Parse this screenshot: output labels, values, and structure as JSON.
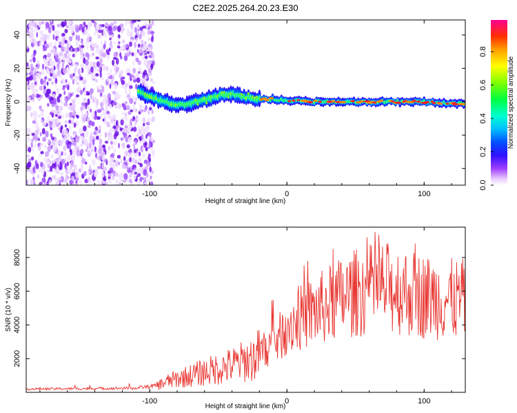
{
  "title": "C2E2.2025.264.20.23.E30",
  "colors": {
    "snr_line": "#e8342f",
    "noise": "#7a1fe0",
    "frame": "#000000"
  },
  "chart_data": [
    {
      "type": "heatmap",
      "xlabel": "Height of straight line (km)",
      "ylabel": "Frequency (Hz)",
      "xlim": [
        -190,
        130
      ],
      "ylim": [
        -50,
        49
      ],
      "xticks": [
        -100,
        0,
        100
      ],
      "yticks": [
        -40,
        -20,
        0,
        20,
        40
      ],
      "colorbar": {
        "label": "Normalized spectral amplitude",
        "range": [
          0,
          0.99
        ],
        "ticks": [
          0.0,
          0.2,
          0.4,
          0.6,
          0.8
        ]
      },
      "noise_region_x": [
        -190,
        -97
      ],
      "ridge": {
        "x": [
          -108,
          -100,
          -92,
          -85,
          -78,
          -70,
          -62,
          -55,
          -48,
          -40,
          -33,
          -25,
          -18,
          -10,
          0,
          10,
          20,
          40,
          60,
          80,
          100,
          120,
          130
        ],
        "y": [
          6,
          3,
          1,
          -1,
          -2,
          -1,
          1,
          2,
          4,
          5,
          3,
          2,
          1.5,
          1.5,
          1,
          0.5,
          0,
          0,
          0,
          0,
          0,
          -1,
          -1
        ]
      }
    },
    {
      "type": "line",
      "xlabel": "Height of straight line (km)",
      "ylabel": "SNR (10 * v/v)",
      "xlim": [
        -190,
        130
      ],
      "ylim": [
        0,
        9800
      ],
      "xticks": [
        -100,
        0,
        100
      ],
      "yticks": [
        2000,
        4000,
        6000,
        8000
      ],
      "trend": {
        "x": [
          -190,
          -150,
          -110,
          -95,
          -85,
          -70,
          -55,
          -40,
          -25,
          -15,
          -5,
          0,
          10,
          20,
          30,
          40,
          50,
          60,
          70,
          80,
          90,
          100,
          110,
          120,
          130
        ],
        "y": [
          200,
          220,
          250,
          400,
          700,
          1000,
          1300,
          1600,
          2000,
          2600,
          3300,
          4000,
          4400,
          4800,
          5200,
          5600,
          5900,
          6100,
          6200,
          6100,
          5900,
          5700,
          5600,
          5500,
          5500
        ]
      },
      "peak_max": 9700
    }
  ]
}
